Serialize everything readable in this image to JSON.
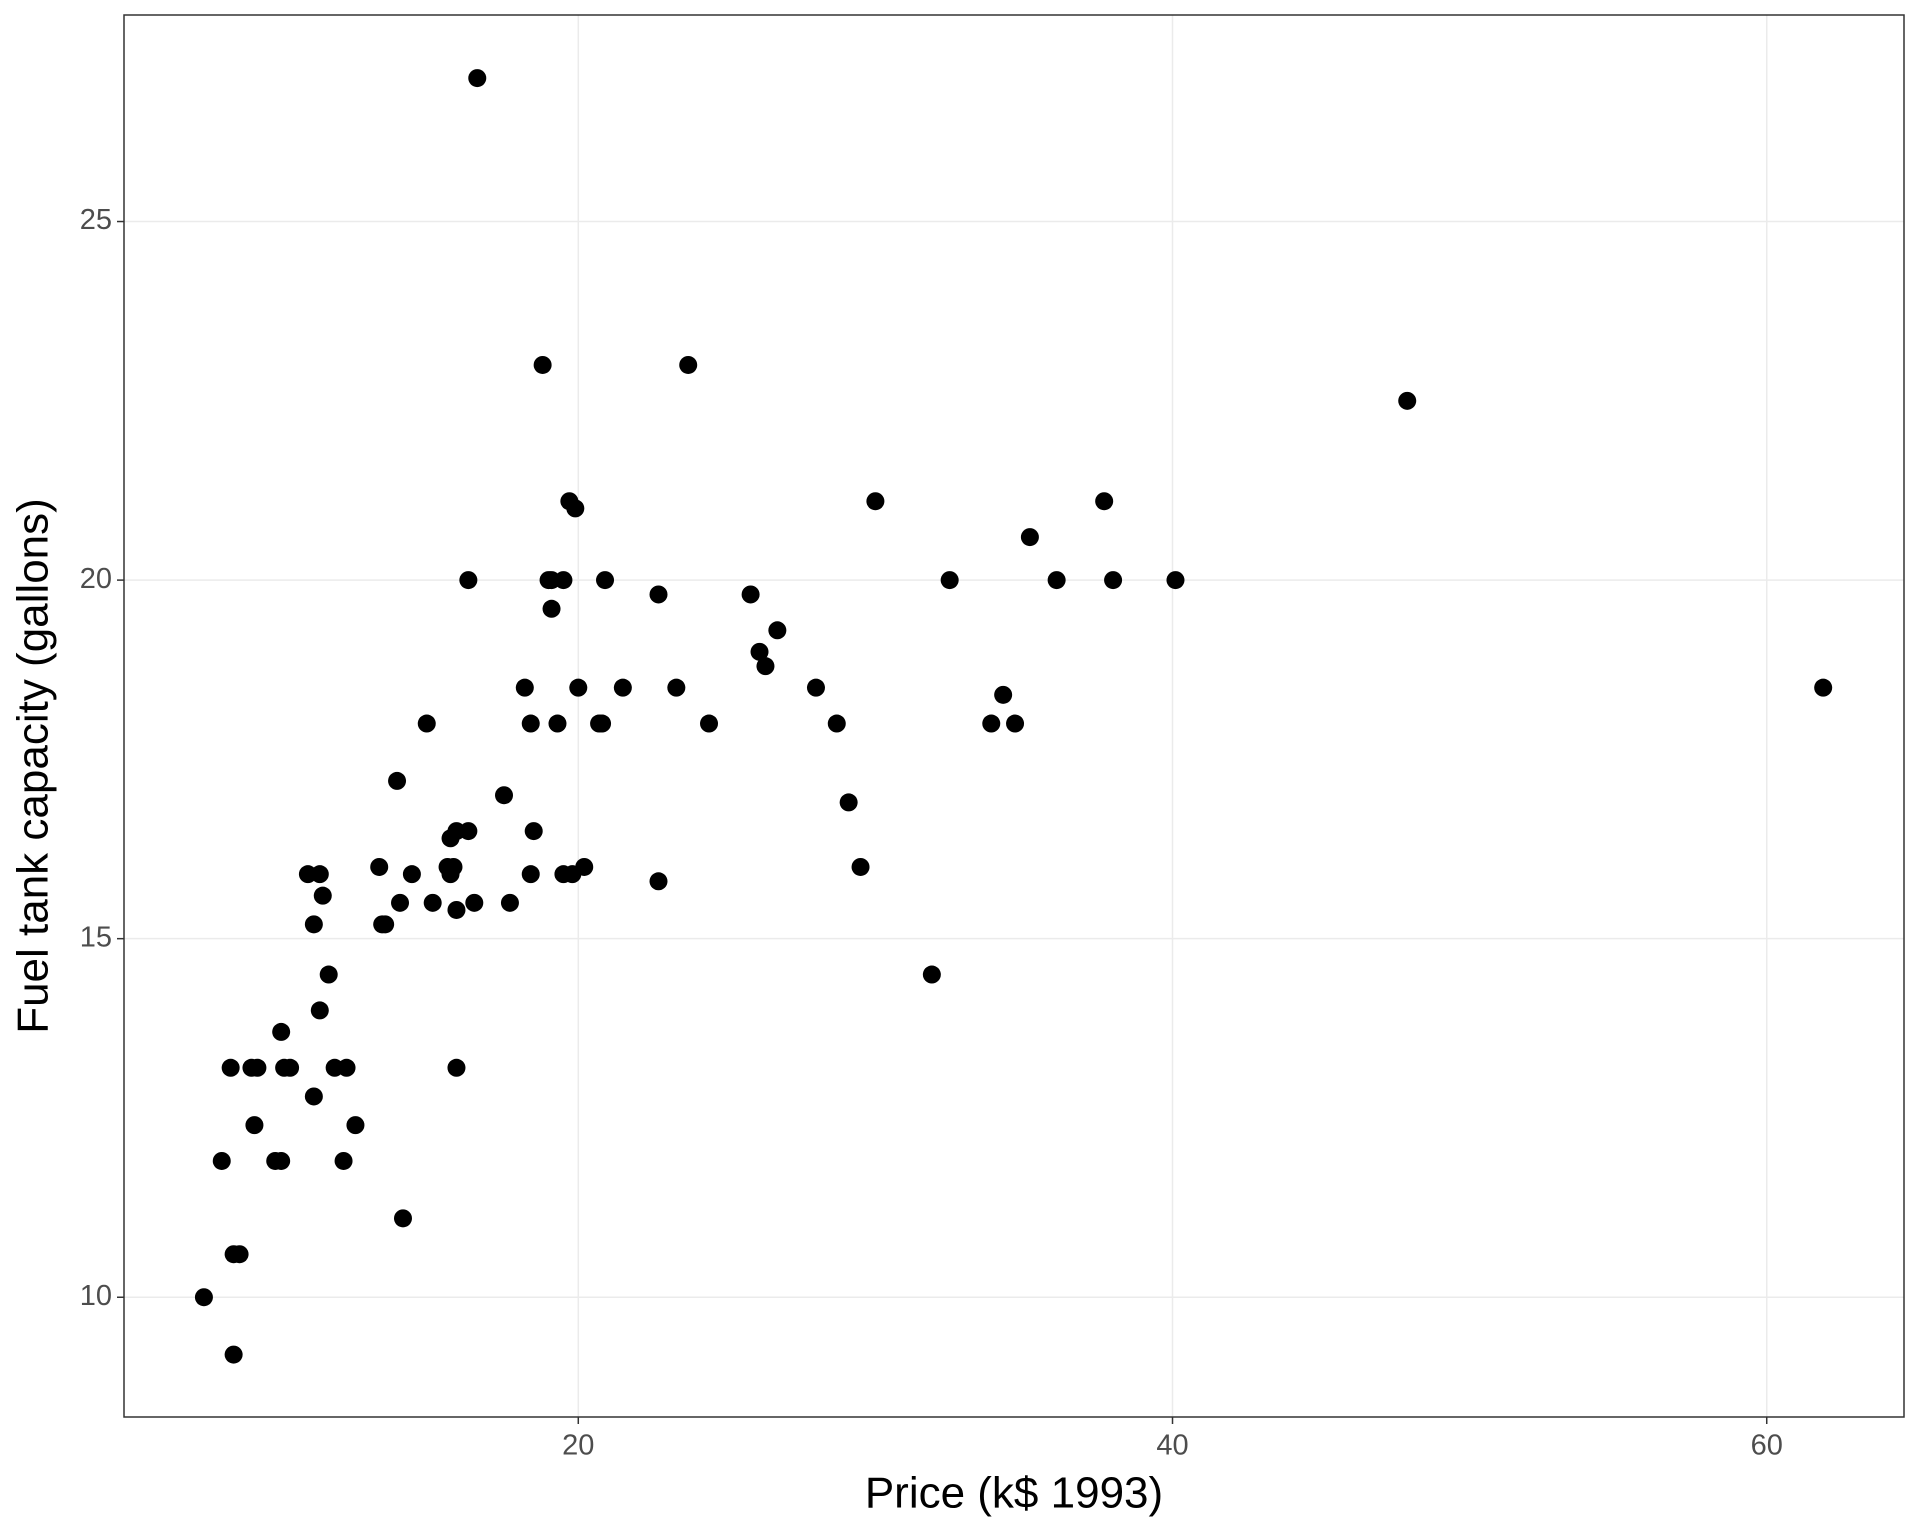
{
  "chart_data": {
    "type": "scatter",
    "x_label": "Price (k$ 1993)",
    "y_label": "Fuel tank capacity (gallons)",
    "xlim": [
      4.71,
      64.62
    ],
    "ylim": [
      8.33,
      27.88
    ],
    "xticks": [
      20,
      40,
      60
    ],
    "yticks": [
      10,
      15,
      20,
      25
    ],
    "grid": true,
    "color": "#000000",
    "x": [
      15.9,
      33.9,
      29.1,
      37.7,
      30.0,
      15.7,
      20.8,
      23.7,
      26.3,
      34.7,
      40.1,
      13.4,
      11.4,
      15.1,
      15.9,
      16.3,
      16.6,
      18.8,
      38.0,
      18.4,
      15.8,
      29.5,
      9.2,
      11.3,
      13.3,
      19.0,
      15.6,
      25.8,
      12.2,
      19.3,
      7.4,
      10.1,
      11.3,
      15.9,
      14.0,
      19.9,
      20.2,
      20.9,
      8.4,
      12.5,
      19.8,
      12.1,
      17.5,
      8.0,
      10.0,
      10.0,
      13.9,
      47.9,
      28.0,
      35.2,
      34.3,
      36.1,
      8.3,
      11.6,
      16.5,
      19.1,
      32.5,
      31.9,
      61.9,
      14.1,
      14.9,
      10.3,
      26.1,
      11.8,
      15.7,
      19.1,
      21.5,
      13.5,
      16.3,
      19.5,
      20.7,
      14.4,
      9.0,
      11.1,
      17.7,
      18.5,
      24.4,
      28.7,
      11.1,
      8.4,
      10.9,
      19.5,
      8.6,
      9.8,
      18.4,
      18.2,
      22.7,
      9.1,
      19.7,
      20.0,
      23.3,
      22.7,
      26.7
    ],
    "y": [
      13.2,
      18.0,
      16.9,
      21.1,
      21.1,
      16.4,
      18.0,
      23.0,
      18.8,
      18.0,
      20.0,
      15.2,
      15.6,
      15.5,
      16.5,
      20.0,
      27.0,
      23.0,
      20.0,
      18.0,
      16.0,
      16.0,
      13.2,
      14.0,
      16.0,
      20.0,
      16.0,
      19.8,
      13.2,
      18.0,
      10.0,
      13.2,
      15.9,
      15.4,
      15.5,
      21.0,
      16.0,
      20.0,
      10.6,
      12.4,
      15.9,
      11.9,
      17.0,
      11.9,
      13.7,
      11.9,
      17.2,
      22.5,
      18.5,
      20.6,
      18.4,
      20.0,
      13.2,
      14.5,
      15.5,
      19.6,
      20.0,
      14.5,
      18.5,
      11.1,
      18.0,
      13.2,
      19.0,
      13.2,
      15.9,
      20.0,
      18.5,
      15.2,
      16.5,
      20.0,
      18.0,
      15.9,
      13.2,
      15.2,
      15.5,
      16.5,
      18.0,
      18.0,
      12.8,
      9.2,
      15.9,
      15.9,
      10.6,
      11.9,
      15.9,
      18.5,
      19.8,
      12.4,
      21.1,
      18.5,
      18.5,
      15.8,
      19.3
    ]
  }
}
